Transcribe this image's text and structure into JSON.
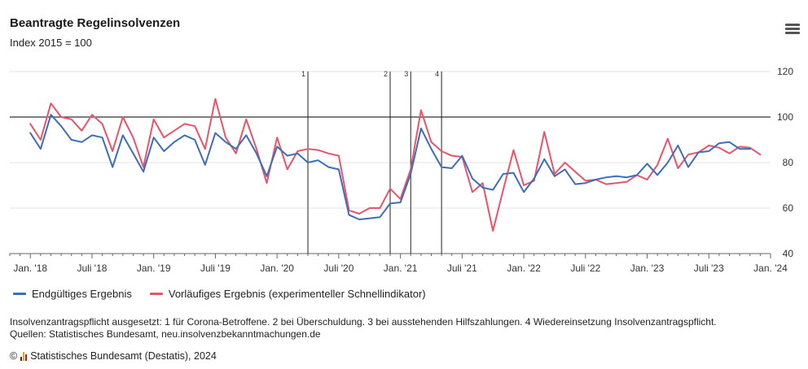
{
  "header": {
    "title": "Beantragte Regelinsolvenzen",
    "subtitle": "Index 2015 = 100",
    "menu_icon": "hamburger-menu-icon"
  },
  "chart_data": {
    "type": "line",
    "title": "Beantragte Regelinsolvenzen",
    "subtitle": "Index 2015 = 100",
    "x": [
      "2018-01",
      "2018-02",
      "2018-03",
      "2018-04",
      "2018-05",
      "2018-06",
      "2018-07",
      "2018-08",
      "2018-09",
      "2018-10",
      "2018-11",
      "2018-12",
      "2019-01",
      "2019-02",
      "2019-03",
      "2019-04",
      "2019-05",
      "2019-06",
      "2019-07",
      "2019-08",
      "2019-09",
      "2019-10",
      "2019-11",
      "2019-12",
      "2020-01",
      "2020-02",
      "2020-03",
      "2020-04",
      "2020-05",
      "2020-06",
      "2020-07",
      "2020-08",
      "2020-09",
      "2020-10",
      "2020-11",
      "2020-12",
      "2021-01",
      "2021-02",
      "2021-03",
      "2021-04",
      "2021-05",
      "2021-06",
      "2021-07",
      "2021-08",
      "2021-09",
      "2021-10",
      "2021-11",
      "2021-12",
      "2022-01",
      "2022-02",
      "2022-03",
      "2022-04",
      "2022-05",
      "2022-06",
      "2022-07",
      "2022-08",
      "2022-09",
      "2022-10",
      "2022-11",
      "2022-12",
      "2023-01",
      "2023-02",
      "2023-03",
      "2023-04",
      "2023-05",
      "2023-06",
      "2023-07",
      "2023-08",
      "2023-09",
      "2023-10",
      "2023-11",
      "2023-12"
    ],
    "x_tick_labels": [
      "Jan. '18",
      "Juli '18",
      "Jan. '19",
      "Juli '19",
      "Jan. '20",
      "Juli '20",
      "Jan. '21",
      "Juli '21",
      "Jan. '22",
      "Juli '22",
      "Jan. '23",
      "Juli '23",
      "Jan. '24"
    ],
    "xlim": [
      "2017-11",
      "2024-01"
    ],
    "y_tick_labels": [
      "40",
      "60",
      "80",
      "100",
      "120"
    ],
    "ylim": [
      40,
      120
    ],
    "reference_line": 100,
    "grid": true,
    "series": [
      {
        "name": "Endgültiges Ergebnis",
        "color": "#3b6fb6",
        "values": [
          93,
          86,
          101,
          96,
          90,
          89,
          92,
          91,
          78,
          92,
          84,
          76,
          91,
          85,
          89,
          92,
          90,
          79,
          93,
          89,
          86,
          92,
          84,
          74,
          87,
          83,
          84,
          80,
          81,
          78,
          77,
          57,
          55,
          55.5,
          56,
          62,
          62.5,
          75,
          95,
          86,
          78,
          77.5,
          83,
          73,
          69,
          68,
          75,
          75.5,
          67,
          73,
          81.5,
          74,
          77,
          70.5,
          71,
          72.5,
          73.5,
          74,
          73.5,
          74.5,
          79.5,
          74.5,
          80,
          87.5,
          78,
          84.5,
          85,
          88.5,
          89,
          86,
          86,
          null
        ]
      },
      {
        "name": "Vorläufiges Ergebnis (experimenteller Schnellindikator)",
        "color": "#e8546c",
        "values": [
          97,
          90,
          106,
          100,
          99,
          94,
          101,
          97,
          85,
          100,
          91,
          78,
          99,
          91,
          94,
          97,
          96,
          86,
          108,
          91,
          84,
          99,
          86,
          71,
          91,
          77,
          85,
          86,
          85.5,
          84,
          83,
          59,
          57.5,
          60,
          60,
          68.5,
          64,
          77,
          103,
          89,
          85,
          83,
          82.5,
          67,
          71,
          50,
          68,
          85.5,
          70,
          72,
          93.5,
          75,
          80,
          76,
          72,
          72.5,
          70.5,
          71,
          71.5,
          74.5,
          72.5,
          79,
          90.5,
          77.5,
          83.5,
          84.5,
          87.5,
          86.5,
          84,
          87,
          86.5,
          83.5
        ]
      }
    ],
    "annotations": [
      {
        "label": "1",
        "x": "2020-04"
      },
      {
        "label": "2",
        "x": "2020-12"
      },
      {
        "label": "3",
        "x": "2021-02"
      },
      {
        "label": "4",
        "x": "2021-05"
      }
    ],
    "legend_position": "bottom-left"
  },
  "footer": {
    "footnote": "Insolvenzantragspflicht ausgesetzt: 1 für Corona-Betroffene. 2 bei Überschuldung. 3 bei ausstehenden Hilfszahlungen. 4 Wiedereinsetzung Insolvenzantragspflicht.",
    "source": "Quellen: Statistisches Bundesamt, neu.insolvenzbekanntmachungen.de",
    "copyright_symbol": "©",
    "logo_icon": "destatis-logo-icon",
    "credit": "Statistisches Bundesamt (Destatis), 2024"
  }
}
